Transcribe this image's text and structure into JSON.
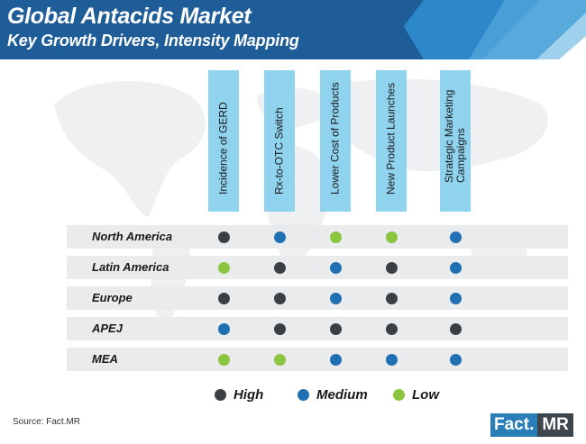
{
  "header": {
    "title": "Global Antacids Market",
    "subtitle": "Key Growth Drivers, Intensity Mapping"
  },
  "colors": {
    "banner_dark": "#1f5d99",
    "banner_light": "#2f8fd1",
    "header_bg": "#8fd3ef",
    "row_band": "#e9ebec",
    "high": "#3a3f44",
    "medium": "#1f6fb2",
    "low": "#8cc63f"
  },
  "chart_data": {
    "type": "table",
    "columns": [
      "Incidence of GERD",
      "Rx-to-OTC Switch",
      "Lower Cost of Products",
      "New Product Launches",
      "Strategic Marketing Campaigns"
    ],
    "rows": [
      {
        "region": "North America",
        "values": [
          "high",
          "medium",
          "low",
          "low",
          "medium"
        ]
      },
      {
        "region": "Latin America",
        "values": [
          "low",
          "high",
          "medium",
          "high",
          "medium"
        ]
      },
      {
        "region": "Europe",
        "values": [
          "high",
          "high",
          "medium",
          "high",
          "medium"
        ]
      },
      {
        "region": "APEJ",
        "values": [
          "medium",
          "high",
          "high",
          "high",
          "high"
        ]
      },
      {
        "region": "MEA",
        "values": [
          "low",
          "low",
          "medium",
          "medium",
          "medium"
        ]
      }
    ],
    "legend": [
      {
        "key": "high",
        "label": "High"
      },
      {
        "key": "medium",
        "label": "Medium"
      },
      {
        "key": "low",
        "label": "Low"
      }
    ]
  },
  "footer": {
    "source": "Source: Fact.MR",
    "logo_left": "Fact.",
    "logo_right": "MR"
  }
}
